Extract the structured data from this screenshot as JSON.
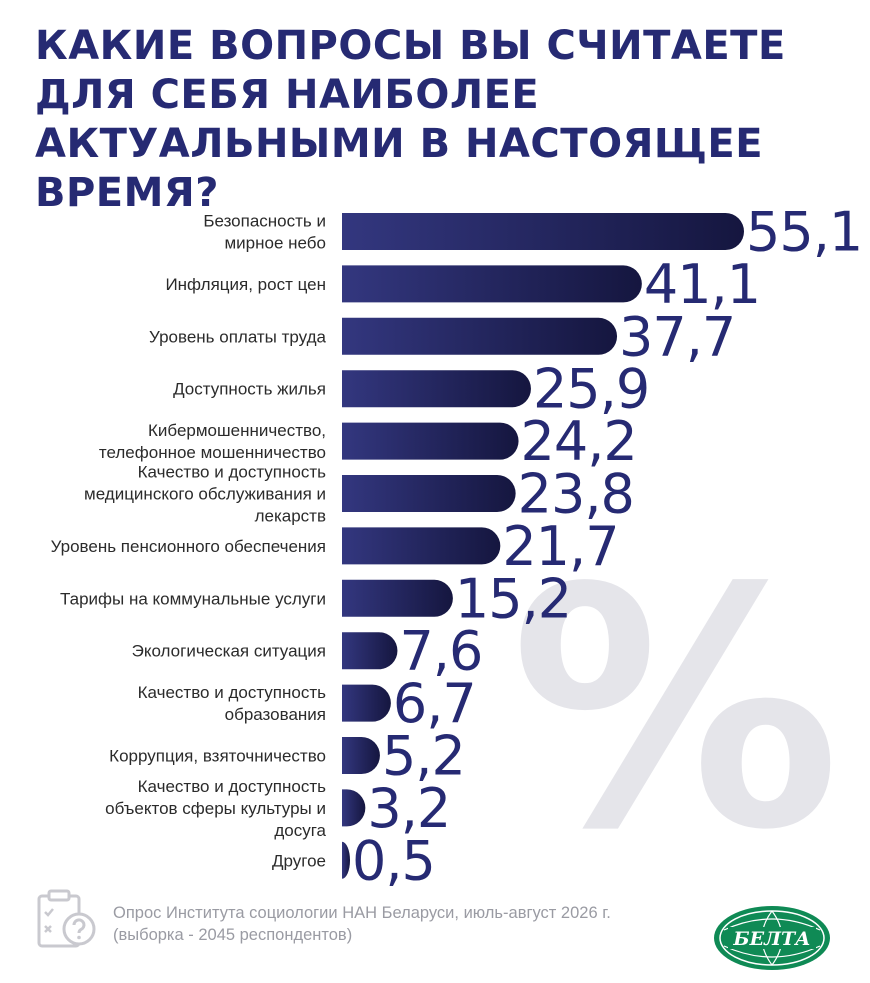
{
  "chart_data": {
    "type": "bar",
    "orientation": "horizontal",
    "title": "КАКИЕ ВОПРОСЫ ВЫ СЧИТАЕТЕ ДЛЯ СЕБЯ НАИБОЛЕЕ АКТУАЛЬНЫМИ В НАСТОЯЩЕЕ ВРЕМЯ?",
    "categories": [
      [
        "Безопасность и",
        "мирное небо"
      ],
      [
        "Инфляция, рост цен"
      ],
      [
        "Уровень оплаты труда"
      ],
      [
        "Доступность жилья"
      ],
      [
        "Кибермошенничество,",
        "телефонное мошенничество"
      ],
      [
        "Качество и доступность",
        "медицинского обслуживания и",
        "лекарств"
      ],
      [
        "Уровень пенсионного обеспечения"
      ],
      [
        "Тарифы на коммунальные услуги"
      ],
      [
        "Экологическая ситуация"
      ],
      [
        "Качество и доступность",
        "образования"
      ],
      [
        "Коррупция, взяточничество"
      ],
      [
        "Качество и доступность",
        "объектов сферы культуры и",
        "досуга"
      ],
      [
        "Другое"
      ]
    ],
    "values": [
      55.1,
      41.1,
      37.7,
      25.9,
      24.2,
      23.8,
      21.7,
      15.2,
      7.6,
      6.7,
      5.2,
      3.2,
      0.5
    ],
    "value_labels": [
      "55,1",
      "41,1",
      "37,7",
      "25,9",
      "24,2",
      "23,8",
      "21,7",
      "15,2",
      "7,6",
      "6,7",
      "5,2",
      "3,2",
      "0,5"
    ],
    "xlim": [
      0,
      55.1
    ],
    "grid": false,
    "legend": "none",
    "colors": {
      "bar_start": "#33377f",
      "bar_end": "#15163f",
      "value_text": "#262a73",
      "label_text": "#2b2b2b"
    }
  },
  "decoration": {
    "percent_sign": "%"
  },
  "footer": {
    "icon": "clipboard-question-icon",
    "line1": "Опрос Института социологии НАН Беларуси, июль-август 2026 г.",
    "line2": "(выборка - 2045 респондентов)"
  },
  "logo": {
    "text": "БЕЛТА",
    "color": "#0f8a55"
  }
}
